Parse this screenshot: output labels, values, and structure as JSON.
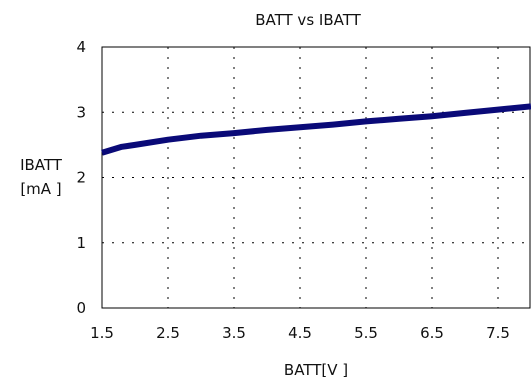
{
  "chart_data": {
    "type": "line",
    "title": "BATT vs IBATT",
    "xlabel": "BATT[V ]",
    "ylabel": "IBATT",
    "ylabel_unit": "[mA ]",
    "xlim": [
      1.5,
      8.0
    ],
    "ylim": [
      0,
      4
    ],
    "x_ticks": [
      1.5,
      2.5,
      3.5,
      4.5,
      5.5,
      6.5,
      7.5
    ],
    "x_tick_labels": [
      "1.5",
      "2.5",
      "3.5",
      "4.5",
      "5.5",
      "6.5",
      "7.5"
    ],
    "y_ticks": [
      0,
      1,
      2,
      3,
      4
    ],
    "y_tick_labels": [
      "0",
      "1",
      "2",
      "3",
      "4"
    ],
    "grid": true,
    "series": [
      {
        "color": "#0a0a78",
        "x": [
          1.5,
          1.8,
          2.0,
          2.5,
          3.0,
          3.5,
          4.0,
          4.5,
          5.0,
          5.5,
          6.0,
          6.5,
          7.0,
          7.5,
          8.0
        ],
        "y": [
          2.38,
          2.47,
          2.5,
          2.58,
          2.64,
          2.68,
          2.73,
          2.77,
          2.81,
          2.86,
          2.9,
          2.94,
          2.99,
          3.04,
          3.09
        ]
      }
    ]
  }
}
